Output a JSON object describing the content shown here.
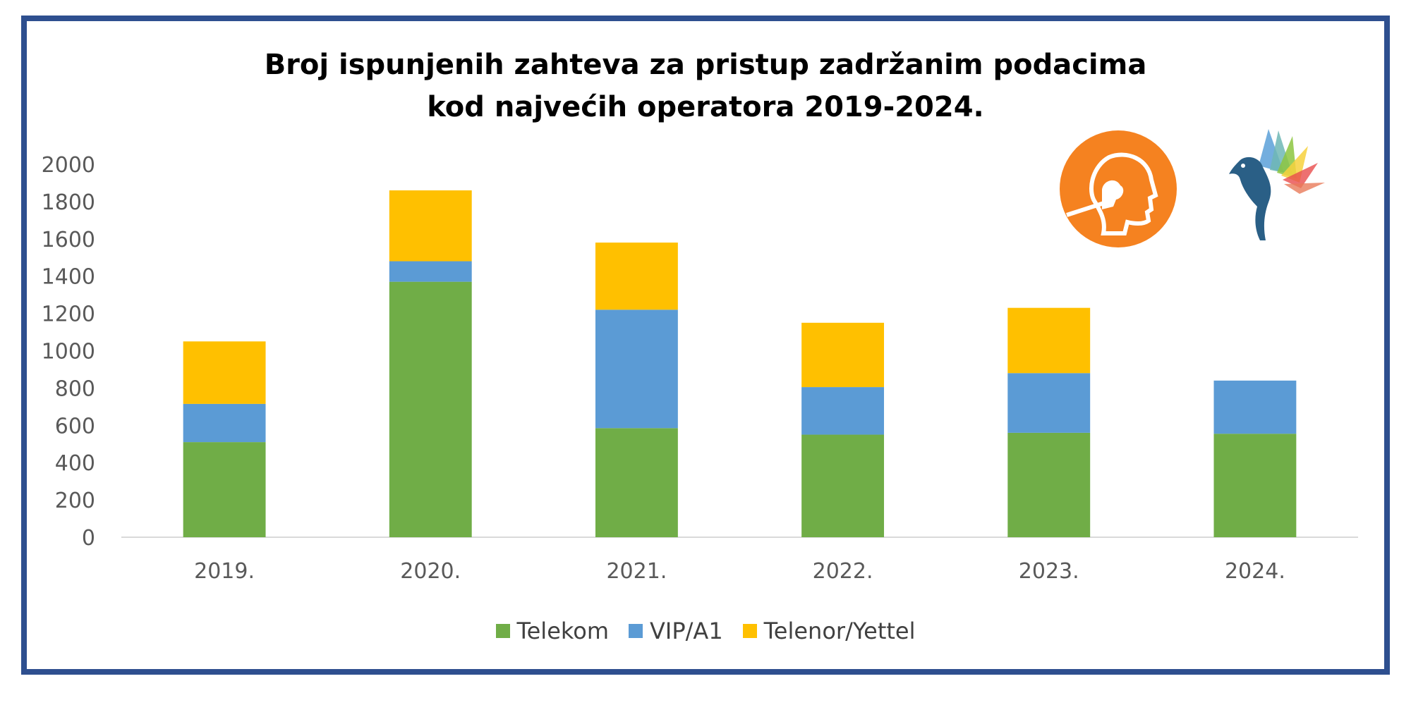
{
  "chart_data": {
    "type": "bar",
    "stacked": true,
    "title_lines": [
      "Broj ispunjenih zahteva za pristup zadržanim podacima",
      "kod najvećih operatora 2019-2024."
    ],
    "xlabel": "",
    "ylabel": "",
    "categories": [
      "2019.",
      "2020.",
      "2021.",
      "2022.",
      "2023.",
      "2024."
    ],
    "series": [
      {
        "name": "Telekom",
        "color": "#70ad47",
        "values": [
          510,
          1370,
          585,
          550,
          560,
          555
        ]
      },
      {
        "name": "VIP/A1",
        "color": "#5b9bd5",
        "values": [
          205,
          110,
          635,
          255,
          320,
          285
        ]
      },
      {
        "name": "Telenor/Yettel",
        "color": "#ffc000",
        "values": [
          335,
          380,
          360,
          345,
          350,
          0
        ]
      }
    ],
    "ylim": [
      0,
      2000
    ],
    "yticks": [
      "0",
      "200",
      "400",
      "600",
      "800",
      "1000",
      "1200",
      "1400",
      "1600",
      "1800",
      "2000"
    ],
    "grid": false,
    "legend_position": "bottom"
  },
  "logos": {
    "left_logo_color": "#f58220",
    "right_logo_colors": [
      "#2a5f86",
      "#e84c4c",
      "#8cc63f",
      "#f7d13d",
      "#5aa0d8"
    ],
    "left_logo_icon": "profile-head-logo",
    "right_logo_icon": "peacock-bird-logo"
  },
  "colors": {
    "frame": "#2e4f8f",
    "axis": "#d9d9d9",
    "tick_text": "#595959"
  }
}
